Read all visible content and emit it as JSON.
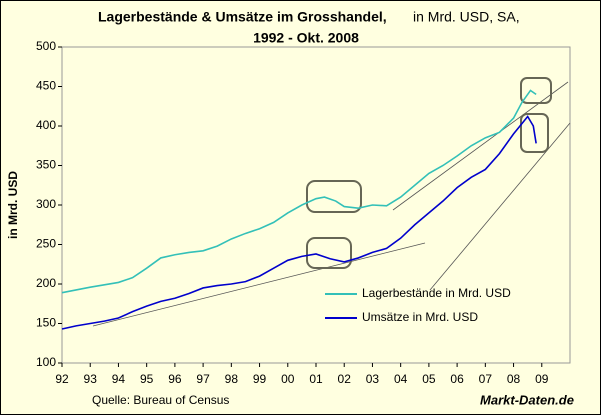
{
  "chart_data": {
    "type": "line",
    "title": "Lagerbestände & Umsätze im Grosshandel,",
    "title_suffix": "in Mrd. USD, SA,",
    "title_line2": "1992 - Okt. 2008",
    "y_label": "in Mrd. USD",
    "source": "Quelle: Bureau of Census",
    "watermark": "Markt-Daten.de",
    "xlim": [
      1992,
      2010
    ],
    "xticks": [
      {
        "value": 1992,
        "label": "92"
      },
      {
        "value": 1993,
        "label": "93"
      },
      {
        "value": 1994,
        "label": "94"
      },
      {
        "value": 1995,
        "label": "95"
      },
      {
        "value": 1996,
        "label": "96"
      },
      {
        "value": 1997,
        "label": "97"
      },
      {
        "value": 1998,
        "label": "98"
      },
      {
        "value": 1999,
        "label": "99"
      },
      {
        "value": 2000,
        "label": "00"
      },
      {
        "value": 2001,
        "label": "01"
      },
      {
        "value": 2002,
        "label": "02"
      },
      {
        "value": 2003,
        "label": "03"
      },
      {
        "value": 2004,
        "label": "04"
      },
      {
        "value": 2005,
        "label": "05"
      },
      {
        "value": 2006,
        "label": "06"
      },
      {
        "value": 2007,
        "label": "07"
      },
      {
        "value": 2008,
        "label": "08"
      },
      {
        "value": 2009,
        "label": "09"
      }
    ],
    "ylim": [
      100,
      500
    ],
    "yticks": [
      100,
      150,
      200,
      250,
      300,
      350,
      400,
      450,
      500
    ],
    "grid": false,
    "series": [
      {
        "name": "Lagerbestände in Mrd. USD",
        "color": "#33c0b8",
        "x": [
          1992.0,
          1993.0,
          1994.0,
          1994.5,
          1995.0,
          1995.5,
          1996.0,
          1996.5,
          1997.0,
          1997.5,
          1998.0,
          1998.5,
          1999.0,
          1999.5,
          2000.0,
          2000.5,
          2001.0,
          2001.3,
          2001.7,
          2002.0,
          2002.5,
          2003.0,
          2003.5,
          2004.0,
          2004.5,
          2005.0,
          2005.5,
          2006.0,
          2006.5,
          2007.0,
          2007.5,
          2008.0,
          2008.3,
          2008.6,
          2008.8
        ],
        "values": [
          189,
          196,
          202,
          208,
          220,
          233,
          237,
          240,
          242,
          248,
          257,
          264,
          270,
          278,
          290,
          300,
          308,
          310,
          305,
          298,
          296,
          300,
          299,
          310,
          325,
          340,
          350,
          362,
          375,
          385,
          392,
          410,
          430,
          445,
          440
        ]
      },
      {
        "name": "Umsätze in Mrd. USD",
        "color": "#0000cc",
        "x": [
          1992.0,
          1992.5,
          1993.0,
          1993.5,
          1994.0,
          1994.5,
          1995.0,
          1995.5,
          1996.0,
          1996.5,
          1997.0,
          1997.5,
          1998.0,
          1998.5,
          1999.0,
          1999.5,
          2000.0,
          2000.5,
          2001.0,
          2001.5,
          2002.0,
          2002.5,
          2003.0,
          2003.5,
          2004.0,
          2004.5,
          2005.0,
          2005.5,
          2006.0,
          2006.5,
          2007.0,
          2007.5,
          2008.0,
          2008.5,
          2008.7,
          2008.8
        ],
        "values": [
          143,
          147,
          150,
          153,
          157,
          165,
          172,
          178,
          182,
          188,
          195,
          198,
          200,
          203,
          210,
          220,
          230,
          235,
          238,
          232,
          228,
          233,
          240,
          245,
          258,
          275,
          290,
          305,
          322,
          335,
          345,
          365,
          390,
          412,
          400,
          378
        ]
      }
    ]
  }
}
